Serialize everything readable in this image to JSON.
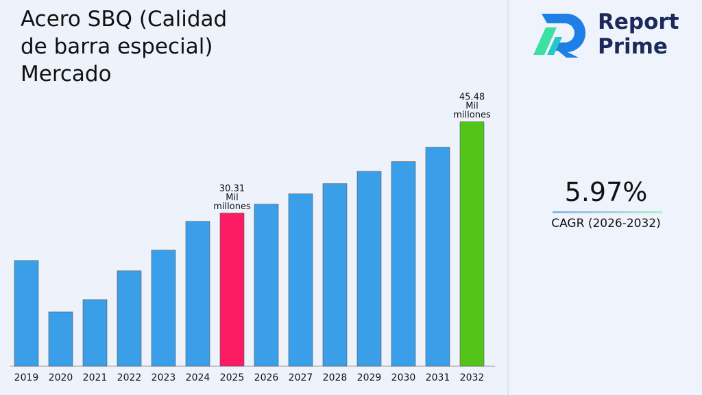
{
  "chart_data": {
    "type": "bar",
    "title": "Acero SBQ (Calidad de barra especial) Mercado",
    "categories": [
      "2019",
      "2020",
      "2021",
      "2022",
      "2023",
      "2024",
      "2025",
      "2026",
      "2027",
      "2028",
      "2029",
      "2030",
      "2031",
      "2032"
    ],
    "values": [
      22.44,
      13.89,
      15.94,
      20.73,
      24.16,
      28.95,
      30.31,
      31.8,
      33.51,
      35.22,
      37.27,
      38.87,
      41.27,
      45.48
    ],
    "value_labels": [
      null,
      null,
      null,
      null,
      null,
      null,
      "30.31 Mil millones",
      null,
      null,
      null,
      null,
      null,
      null,
      "45.48 Mil millones"
    ],
    "colors": [
      "#3a9fe8",
      "#3a9fe8",
      "#3a9fe8",
      "#3a9fe8",
      "#3a9fe8",
      "#3a9fe8",
      "#fc1c64",
      "#3a9fe8",
      "#3a9fe8",
      "#3a9fe8",
      "#3a9fe8",
      "#3a9fe8",
      "#3a9fe8",
      "#52c41a"
    ],
    "ylim": [
      4.88,
      50
    ]
  },
  "cagr": {
    "value": "5.97%",
    "label": "CAGR (2026-2032)"
  },
  "logo": {
    "line1": "Report",
    "line2": "Prime"
  }
}
